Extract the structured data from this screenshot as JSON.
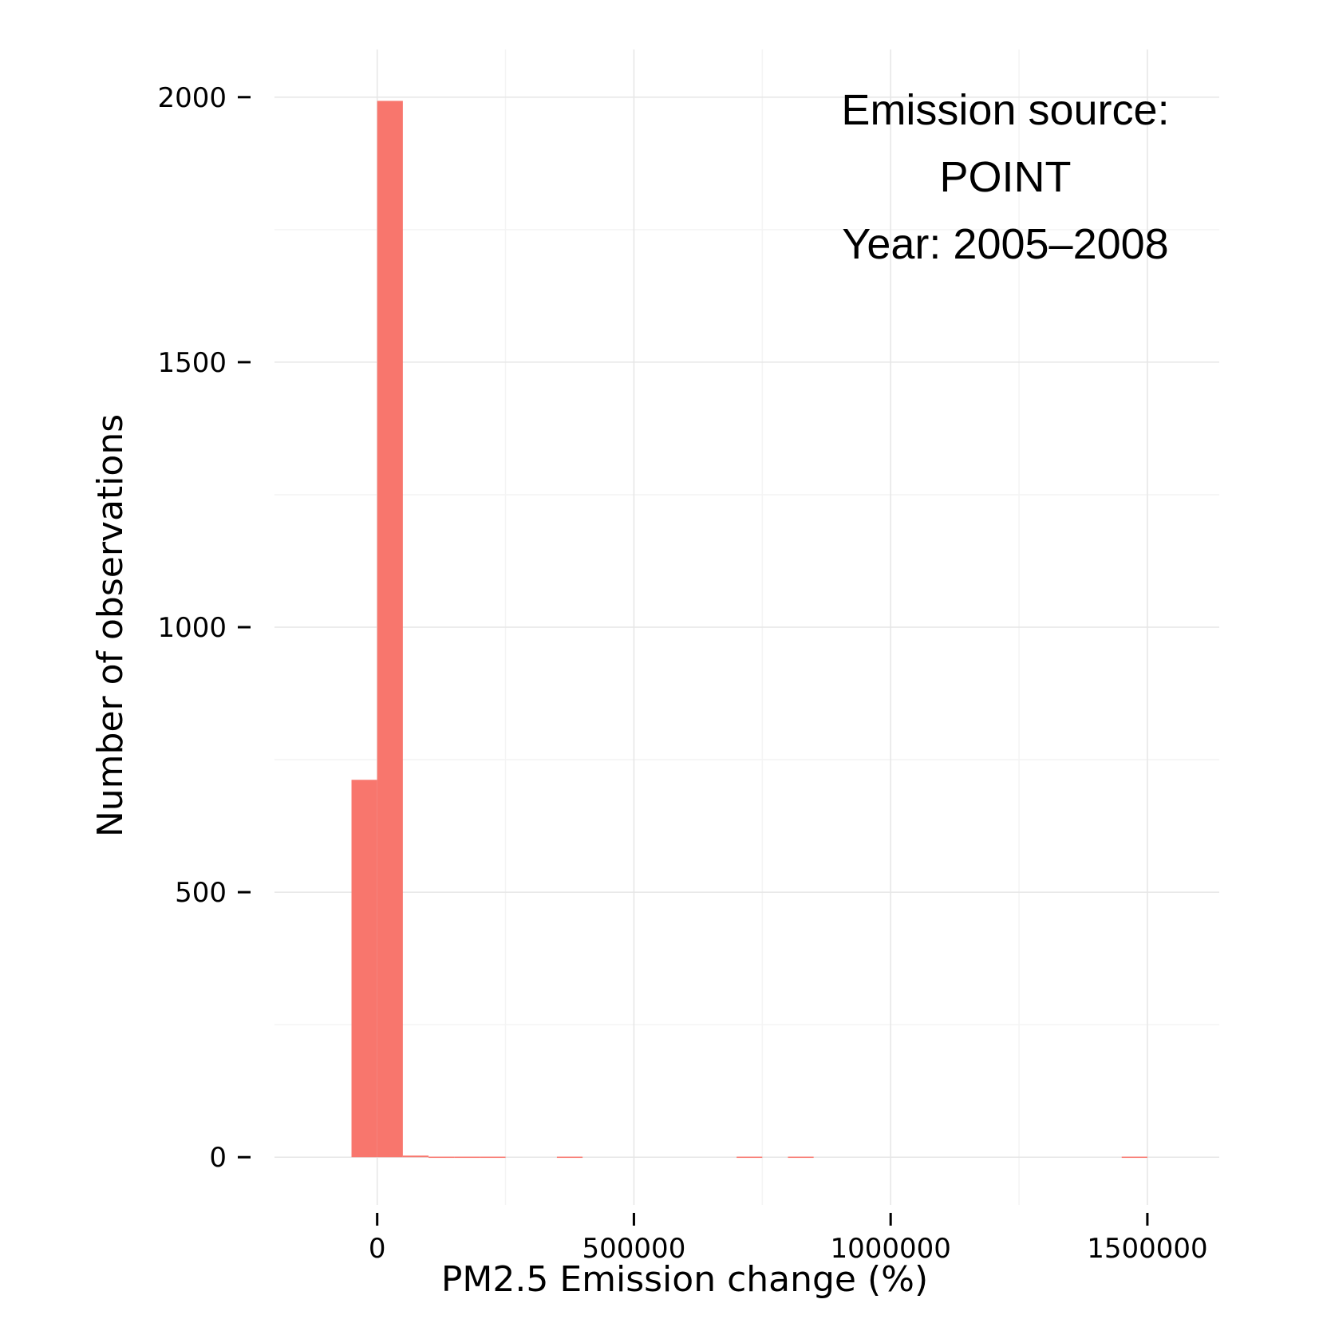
{
  "chart_data": {
    "type": "bar",
    "subtype": "histogram",
    "xlabel": "PM2.5 Emission change (%)",
    "ylabel": "Number of observations",
    "annotation": [
      "Emission source:",
      "POINT",
      "Year: 2005–2008"
    ],
    "annotation_placement": "top-right",
    "xlim": [
      -200000,
      1640000
    ],
    "ylim": [
      -90,
      2090
    ],
    "x_ticks": [
      0,
      500000,
      1000000,
      1500000
    ],
    "x_tick_labels": [
      "0",
      "500000",
      "1000000",
      "1500000"
    ],
    "y_ticks": [
      0,
      500,
      1000,
      1500,
      2000
    ],
    "y_tick_labels": [
      "0",
      "500",
      "1000",
      "1500",
      "2000"
    ],
    "grid": true,
    "bar_color": "#F8766D",
    "bin_width": 50000,
    "bins": [
      {
        "start": -50000,
        "end": 0,
        "count": 712
      },
      {
        "start": 0,
        "end": 50000,
        "count": 1993
      },
      {
        "start": 50000,
        "end": 100000,
        "count": 3
      },
      {
        "start": 100000,
        "end": 150000,
        "count": 1
      },
      {
        "start": 150000,
        "end": 200000,
        "count": 1
      },
      {
        "start": 200000,
        "end": 250000,
        "count": 1
      },
      {
        "start": 350000,
        "end": 400000,
        "count": 1
      },
      {
        "start": 700000,
        "end": 750000,
        "count": 1
      },
      {
        "start": 800000,
        "end": 850000,
        "count": 1
      },
      {
        "start": 1450000,
        "end": 1500000,
        "count": 1
      }
    ]
  }
}
